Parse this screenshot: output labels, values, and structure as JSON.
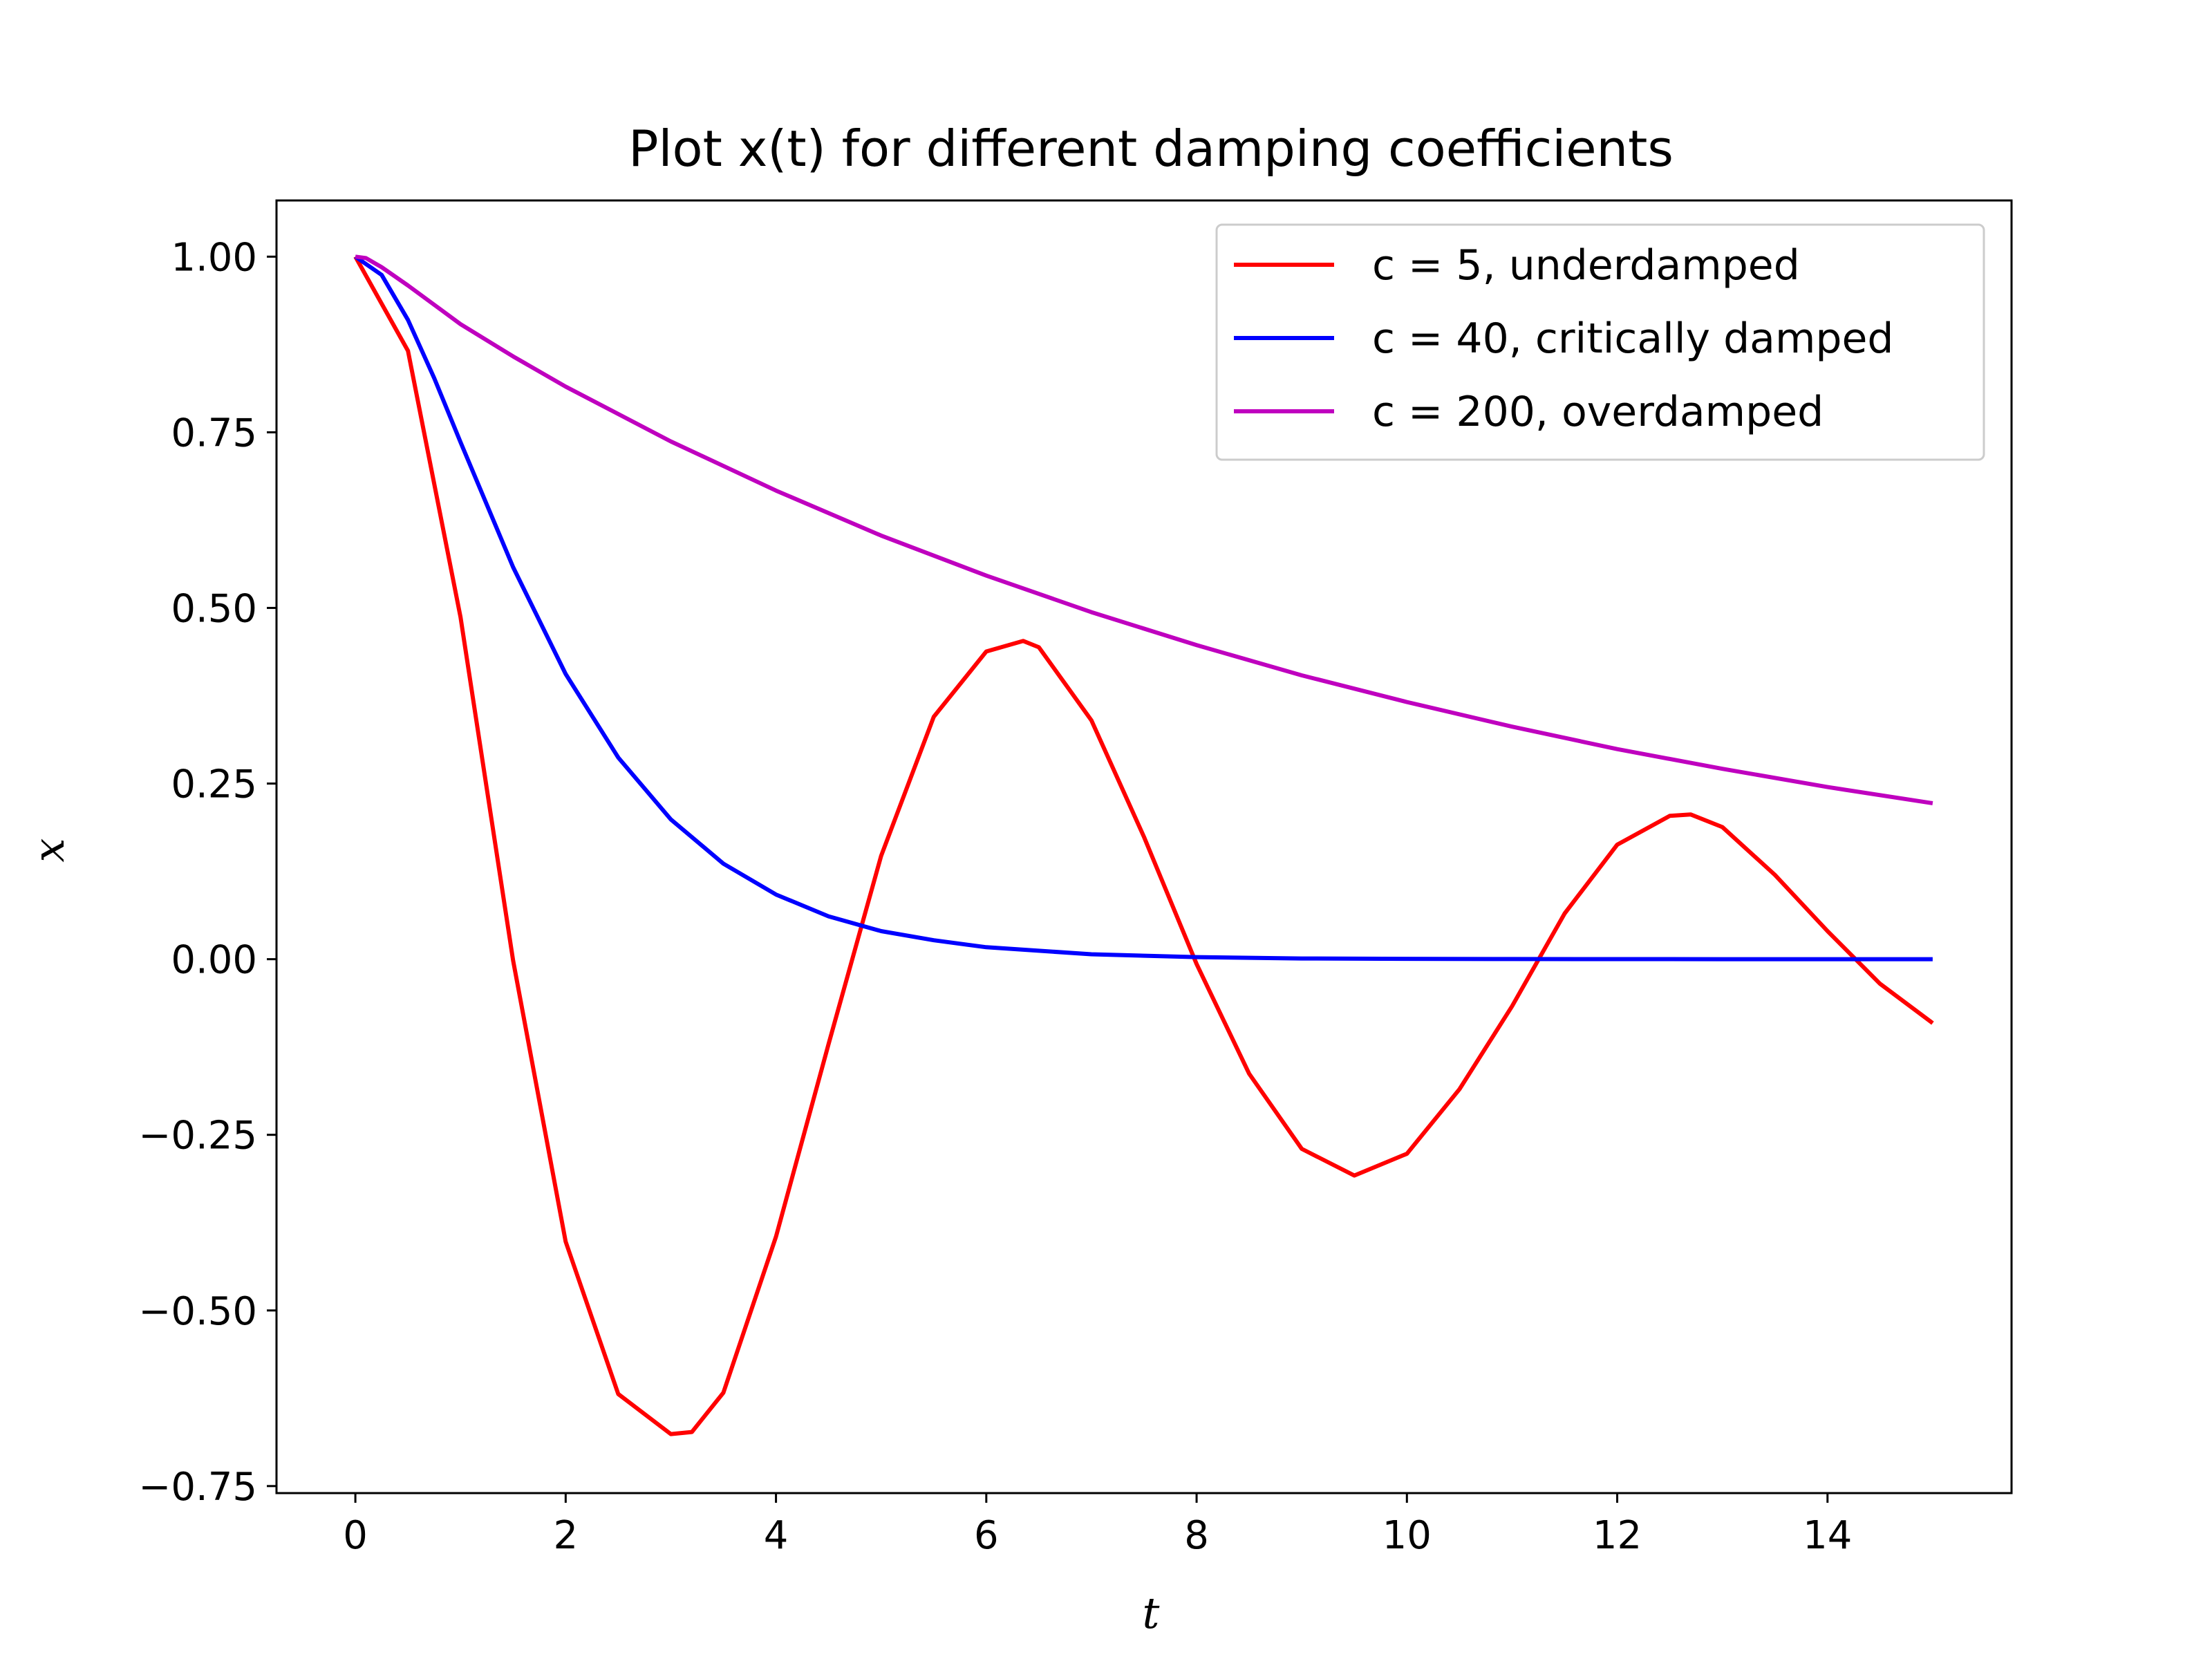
{
  "chart_data": {
    "type": "line",
    "title": "Plot x(t) for different damping coefficients",
    "xlabel": "t",
    "ylabel": "x",
    "xlim": [
      -0.75,
      15.75
    ],
    "ylim": [
      -0.76,
      1.08
    ],
    "xticks": [
      0,
      2,
      4,
      6,
      8,
      10,
      12,
      14
    ],
    "xtick_labels": [
      "0",
      "2",
      "4",
      "6",
      "8",
      "10",
      "12",
      "14"
    ],
    "yticks": [
      -0.75,
      -0.5,
      -0.25,
      0.0,
      0.25,
      0.5,
      0.75,
      1.0
    ],
    "ytick_labels": [
      "−0.75",
      "−0.50",
      "−0.25",
      "0.00",
      "0.25",
      "0.50",
      "0.75",
      "1.00"
    ],
    "grid": false,
    "legend_position": "top-right",
    "series": [
      {
        "name": "c = 5, underdamped",
        "color": "#ff0000",
        "x": [
          0,
          0.5,
          1.0,
          1.5,
          2.0,
          2.5,
          3.0,
          3.2,
          3.5,
          4.0,
          4.5,
          5.0,
          5.5,
          6.0,
          6.35,
          6.5,
          7.0,
          7.5,
          8.0,
          8.5,
          9.0,
          9.5,
          10.0,
          10.5,
          11.0,
          11.5,
          12.0,
          12.5,
          12.7,
          13.0,
          13.5,
          14.0,
          14.5,
          15.0
        ],
        "y": [
          1.0,
          0.866,
          0.487,
          -0.002,
          -0.402,
          -0.619,
          -0.676,
          -0.673,
          -0.617,
          -0.395,
          -0.121,
          0.147,
          0.345,
          0.438,
          0.453,
          0.444,
          0.34,
          0.174,
          -0.007,
          -0.163,
          -0.27,
          -0.308,
          -0.277,
          -0.185,
          -0.067,
          0.065,
          0.163,
          0.204,
          0.206,
          0.188,
          0.12,
          0.04,
          -0.035,
          -0.091
        ]
      },
      {
        "name": "c = 40, critically damped",
        "color": "#0000ff",
        "x": [
          0,
          0.25,
          0.5,
          0.75,
          1.0,
          1.5,
          2.0,
          2.5,
          3.0,
          3.5,
          4.0,
          4.5,
          5.0,
          5.5,
          6.0,
          7.0,
          8.0,
          9.0,
          10.0,
          11.0,
          12.0,
          13.0,
          14.0,
          15.0
        ],
        "y": [
          1.0,
          0.974,
          0.91,
          0.827,
          0.736,
          0.558,
          0.406,
          0.287,
          0.199,
          0.136,
          0.092,
          0.061,
          0.04,
          0.027,
          0.017,
          0.007,
          0.003,
          0.001,
          0.0005,
          0.0002,
          0.0001,
          0.0,
          0.0,
          0.0
        ]
      },
      {
        "name": "c = 200, overdamped",
        "color": "#bf00bf",
        "x": [
          0,
          0.1,
          0.25,
          0.5,
          1.0,
          1.5,
          2.0,
          3.0,
          4.0,
          5.0,
          6.0,
          7.0,
          8.0,
          9.0,
          10.0,
          11.0,
          12.0,
          13.0,
          14.0,
          15.0
        ],
        "y": [
          1.0,
          0.998,
          0.985,
          0.959,
          0.904,
          0.858,
          0.815,
          0.737,
          0.667,
          0.603,
          0.546,
          0.494,
          0.447,
          0.404,
          0.366,
          0.331,
          0.299,
          0.271,
          0.245,
          0.222
        ]
      }
    ]
  }
}
